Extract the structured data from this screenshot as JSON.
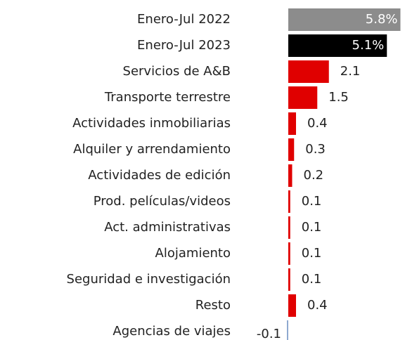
{
  "chart_data": {
    "type": "barh",
    "categories": [
      "Enero-Jul 2022",
      "Enero-Jul 2023",
      "Servicios de A&B",
      "Transporte terrestre",
      "Actividades inmobiliarias",
      "Alquiler y arrendamiento",
      "Actividades de edición",
      "Prod. películas/videos",
      "Act. administrativas",
      "Alojamiento",
      "Seguridad e investigación",
      "Resto",
      "Agencias de viajes"
    ],
    "values": [
      5.8,
      5.1,
      2.1,
      1.5,
      0.4,
      0.3,
      0.2,
      0.1,
      0.1,
      0.1,
      0.1,
      0.4,
      -0.1
    ],
    "value_labels": [
      "5.8%",
      "5.1%",
      "2.1",
      "1.5",
      "0.4",
      "0.3",
      "0.2",
      "0.1",
      "0.1",
      "0.1",
      "0.1",
      "0.4",
      "-0.1"
    ],
    "colors": [
      "#8c8c8c",
      "#000000",
      "#e00000",
      "#e00000",
      "#e00000",
      "#e00000",
      "#e00000",
      "#e00000",
      "#e00000",
      "#e00000",
      "#e00000",
      "#e00000",
      "#8fa9d0"
    ]
  }
}
